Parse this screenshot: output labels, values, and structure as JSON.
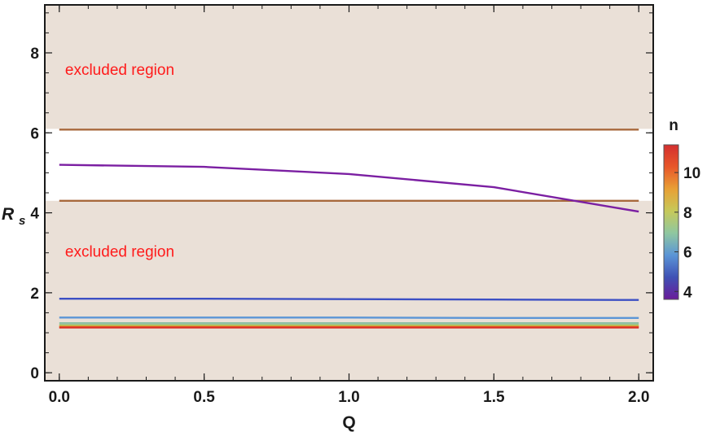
{
  "chart_data": {
    "type": "line",
    "xlabel": "Q",
    "ylabel_main": "R",
    "ylabel_sub": "s",
    "xlim": [
      -0.05,
      2.05
    ],
    "ylim": [
      -0.2,
      9.2
    ],
    "xticks": [
      0.0,
      0.5,
      1.0,
      1.5,
      2.0
    ],
    "xtick_labels": [
      "0.0",
      "0.5",
      "1.0",
      "1.5",
      "2.0"
    ],
    "yticks": [
      0,
      2,
      4,
      6,
      8
    ],
    "ytick_labels": [
      "0",
      "2",
      "4",
      "6",
      "8"
    ],
    "x": [
      0.0,
      0.5,
      1.0,
      1.5,
      2.0
    ],
    "excluded_regions": [
      {
        "from": 6.1,
        "to": 9.2,
        "label": "excluded region",
        "label_position": [
          0.02,
          7.45
        ]
      },
      {
        "from": -0.2,
        "to": 4.3,
        "label": "excluded region",
        "label_position": [
          0.02,
          2.9
        ]
      }
    ],
    "boundaries": [
      {
        "y": 6.08,
        "color": "#a8693c"
      },
      {
        "y": 4.3,
        "color": "#a8693c"
      }
    ],
    "series": [
      {
        "n": 4,
        "color": "#7b1fa2",
        "values": [
          5.2,
          5.15,
          4.97,
          4.64,
          4.03
        ]
      },
      {
        "n": 5,
        "color": "#3c4fc4",
        "values": [
          1.85,
          1.85,
          1.84,
          1.83,
          1.82
        ]
      },
      {
        "n": 6,
        "color": "#5b95d6",
        "values": [
          1.38,
          1.38,
          1.38,
          1.37,
          1.37
        ]
      },
      {
        "n": 7,
        "color": "#8fbfa5",
        "values": [
          1.24,
          1.24,
          1.24,
          1.24,
          1.24
        ]
      },
      {
        "n": 8,
        "color": "#a3c26a",
        "values": [
          1.19,
          1.19,
          1.19,
          1.19,
          1.19
        ]
      },
      {
        "n": 9,
        "color": "#d9b13b",
        "values": [
          1.16,
          1.16,
          1.16,
          1.16,
          1.16
        ]
      },
      {
        "n": 10,
        "color": "#e8762c",
        "values": [
          1.14,
          1.14,
          1.14,
          1.14,
          1.14
        ]
      },
      {
        "n": 11,
        "color": "#d93025",
        "values": [
          1.13,
          1.13,
          1.13,
          1.13,
          1.13
        ]
      }
    ],
    "colorbar": {
      "title": "n",
      "range": [
        3.6,
        11.4
      ],
      "ticks": [
        4,
        6,
        8,
        10
      ],
      "tick_labels": [
        "4",
        "6",
        "8",
        "10"
      ],
      "colors": [
        "#6a1b9a",
        "#3f51b5",
        "#5b95d6",
        "#8fc7a0",
        "#c6c95a",
        "#e8a035",
        "#e8572a",
        "#d32f2f"
      ]
    },
    "grid": false,
    "colors": {
      "excluded_fill": "#eae0d7",
      "region_text": "#ff1a1a",
      "frame": "#1a1a1a"
    }
  }
}
